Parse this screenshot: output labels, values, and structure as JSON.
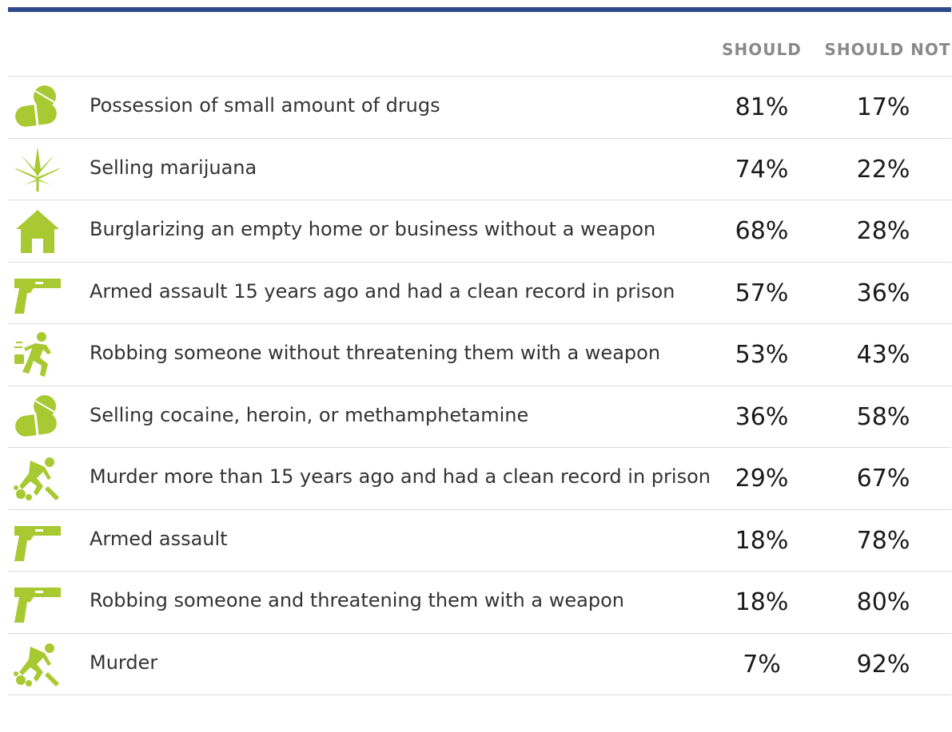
{
  "colors": {
    "accent_bar": "#2e4a8c",
    "icon": "#a8c932",
    "text": "#333333",
    "header": "#8a8a8a"
  },
  "chart_data": {
    "type": "table",
    "columns": [
      "SHOULD",
      "SHOULD NOT"
    ],
    "rows": [
      {
        "label": "Possession of small amount of drugs",
        "icon": "pills-icon",
        "should": "81%",
        "should_not": "17%"
      },
      {
        "label": "Selling marijuana",
        "icon": "cannabis-leaf-icon",
        "should": "74%",
        "should_not": "22%"
      },
      {
        "label": "Burglarizing an empty home or business without a weapon",
        "icon": "house-icon",
        "should": "68%",
        "should_not": "28%"
      },
      {
        "label": "Armed assault 15 years ago and had a clean record in prison",
        "icon": "gun-icon",
        "should": "57%",
        "should_not": "36%"
      },
      {
        "label": "Robbing someone without threatening them with a weapon",
        "icon": "running-thief-icon",
        "should": "53%",
        "should_not": "43%"
      },
      {
        "label": "Selling cocaine, heroin, or methamphetamine",
        "icon": "pills-icon",
        "should": "36%",
        "should_not": "58%"
      },
      {
        "label": "Murder more than 15 years ago and had a clean record in prison",
        "icon": "murder-victim-icon",
        "should": "29%",
        "should_not": "67%"
      },
      {
        "label": "Armed assault",
        "icon": "gun-icon",
        "should": "18%",
        "should_not": "78%"
      },
      {
        "label": "Robbing someone and threatening them with a weapon",
        "icon": "gun-icon",
        "should": "18%",
        "should_not": "80%"
      },
      {
        "label": "Murder",
        "icon": "murder-victim-icon",
        "should": "7%",
        "should_not": "92%"
      }
    ]
  }
}
